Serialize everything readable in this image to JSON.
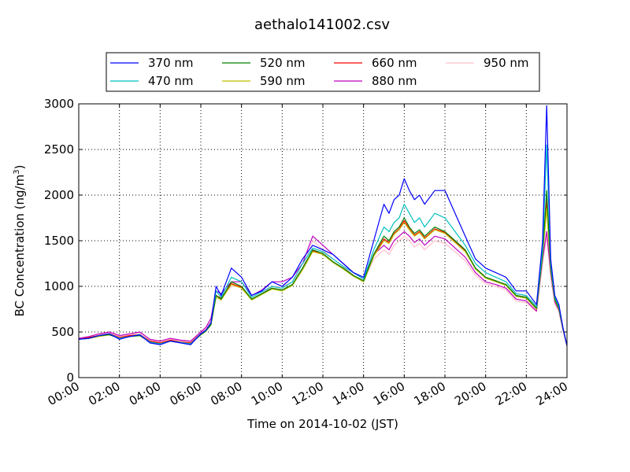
{
  "chart_data": {
    "type": "line",
    "title": "aethalo141002.csv",
    "xlabel": "Time on 2014-10-02 (JST)",
    "ylabel_prefix": "BC Concentration (ng/m",
    "ylabel_superscript": "3",
    "ylabel_suffix": ")",
    "x_unit": "hours",
    "xlim": [
      0,
      24
    ],
    "ylim": [
      0,
      3000
    ],
    "grid": true,
    "legend_position": "top-center",
    "x_tick_labels": [
      "00:00",
      "02:00",
      "04:00",
      "06:00",
      "08:00",
      "10:00",
      "12:00",
      "14:00",
      "16:00",
      "18:00",
      "20:00",
      "22:00",
      "24:00"
    ],
    "y_ticks": [
      0,
      500,
      1000,
      1500,
      2000,
      2500,
      3000
    ],
    "y_tick_labels": [
      "0",
      "500",
      "1000",
      "1500",
      "2000",
      "2500",
      "3000"
    ],
    "x": [
      0,
      0.5,
      1,
      1.5,
      2,
      2.5,
      3,
      3.5,
      4,
      4.5,
      5,
      5.5,
      6,
      6.25,
      6.5,
      6.75,
      7,
      7.5,
      8,
      8.5,
      9,
      9.5,
      10,
      10.5,
      11,
      11.5,
      12,
      12.5,
      13,
      13.5,
      14,
      14.5,
      15,
      15.25,
      15.5,
      15.75,
      16,
      16.25,
      16.5,
      16.75,
      17,
      17.5,
      18,
      18.5,
      19,
      19.5,
      20,
      20.5,
      21,
      21.5,
      22,
      22.5,
      22.8,
      23,
      23.2,
      23.4,
      23.6,
      23.8,
      24
    ],
    "series": [
      {
        "name": "370 nm",
        "color": "#0000ff",
        "values": [
          420,
          430,
          460,
          480,
          420,
          450,
          470,
          380,
          360,
          400,
          380,
          360,
          480,
          520,
          600,
          1000,
          900,
          1200,
          1100,
          900,
          950,
          1050,
          1000,
          1100,
          1300,
          1450,
          1400,
          1350,
          1250,
          1150,
          1100,
          1500,
          1900,
          1800,
          1950,
          2000,
          2180,
          2050,
          1950,
          2000,
          1900,
          2050,
          2050,
          1800,
          1550,
          1300,
          1200,
          1150,
          1100,
          950,
          950,
          800,
          1500,
          2980,
          1300,
          900,
          800,
          550,
          350
        ]
      },
      {
        "name": "470 nm",
        "color": "#00bfbf",
        "values": [
          420,
          430,
          460,
          480,
          430,
          450,
          470,
          390,
          370,
          400,
          385,
          370,
          480,
          520,
          600,
          950,
          880,
          1100,
          1050,
          880,
          940,
          1000,
          980,
          1050,
          1250,
          1420,
          1380,
          1300,
          1220,
          1150,
          1080,
          1400,
          1650,
          1600,
          1700,
          1750,
          1900,
          1800,
          1700,
          1750,
          1650,
          1800,
          1750,
          1600,
          1450,
          1250,
          1150,
          1100,
          1050,
          920,
          900,
          780,
          1400,
          2550,
          1250,
          880,
          780,
          550,
          350
        ]
      },
      {
        "name": "520 nm",
        "color": "#008000",
        "values": [
          420,
          430,
          460,
          470,
          430,
          450,
          460,
          390,
          370,
          400,
          385,
          370,
          470,
          510,
          580,
          900,
          860,
          1050,
          1000,
          860,
          920,
          980,
          960,
          1020,
          1200,
          1400,
          1360,
          1270,
          1200,
          1120,
          1060,
          1350,
          1550,
          1500,
          1600,
          1650,
          1750,
          1650,
          1580,
          1620,
          1550,
          1650,
          1600,
          1500,
          1400,
          1200,
          1100,
          1060,
          1020,
          900,
          880,
          760,
          1350,
          2050,
          1200,
          860,
          760,
          540,
          350
        ]
      },
      {
        "name": "590 nm",
        "color": "#bfbf00",
        "values": [
          420,
          430,
          450,
          470,
          430,
          450,
          460,
          390,
          370,
          400,
          385,
          370,
          470,
          510,
          580,
          880,
          850,
          1020,
          980,
          850,
          910,
          970,
          950,
          1010,
          1180,
          1380,
          1350,
          1260,
          1190,
          1110,
          1050,
          1330,
          1500,
          1470,
          1570,
          1620,
          1700,
          1620,
          1550,
          1590,
          1520,
          1620,
          1580,
          1480,
          1380,
          1190,
          1090,
          1050,
          1010,
          890,
          870,
          750,
          1330,
          1850,
          1180,
          850,
          750,
          540,
          350
        ]
      },
      {
        "name": "660 nm",
        "color": "#ff0000",
        "values": [
          420,
          440,
          460,
          480,
          440,
          460,
          470,
          400,
          380,
          410,
          390,
          380,
          480,
          520,
          600,
          900,
          870,
          1030,
          990,
          860,
          920,
          980,
          960,
          1020,
          1190,
          1390,
          1360,
          1270,
          1200,
          1120,
          1060,
          1340,
          1520,
          1480,
          1580,
          1630,
          1720,
          1630,
          1560,
          1600,
          1530,
          1630,
          1590,
          1490,
          1390,
          1200,
          1100,
          1060,
          1020,
          900,
          880,
          760,
          1340,
          1950,
          1190,
          860,
          760,
          540,
          350
        ]
      },
      {
        "name": "880 nm",
        "color": "#bf00bf",
        "values": [
          430,
          450,
          480,
          500,
          460,
          480,
          500,
          420,
          400,
          430,
          410,
          400,
          500,
          550,
          650,
          950,
          920,
          1050,
          1050,
          900,
          960,
          1050,
          1050,
          1100,
          1250,
          1550,
          1450,
          1350,
          1250,
          1150,
          1080,
          1350,
          1450,
          1400,
          1500,
          1550,
          1600,
          1550,
          1480,
          1520,
          1450,
          1550,
          1520,
          1420,
          1320,
          1150,
          1050,
          1020,
          980,
          860,
          840,
          730,
          1300,
          1600,
          1150,
          830,
          740,
          530,
          350
        ]
      },
      {
        "name": "950 nm",
        "color": "#ffc0cb",
        "values": [
          420,
          440,
          470,
          490,
          450,
          470,
          490,
          410,
          390,
          420,
          400,
          390,
          490,
          540,
          620,
          900,
          880,
          1000,
          1000,
          860,
          920,
          1000,
          1000,
          1050,
          1200,
          1500,
          1400,
          1300,
          1220,
          1120,
          1050,
          1300,
          1400,
          1350,
          1450,
          1500,
          1550,
          1500,
          1430,
          1470,
          1400,
          1500,
          1470,
          1380,
          1280,
          1120,
          1030,
          1000,
          960,
          840,
          820,
          720,
          1250,
          1550,
          1100,
          810,
          720,
          520,
          340
        ]
      }
    ]
  }
}
